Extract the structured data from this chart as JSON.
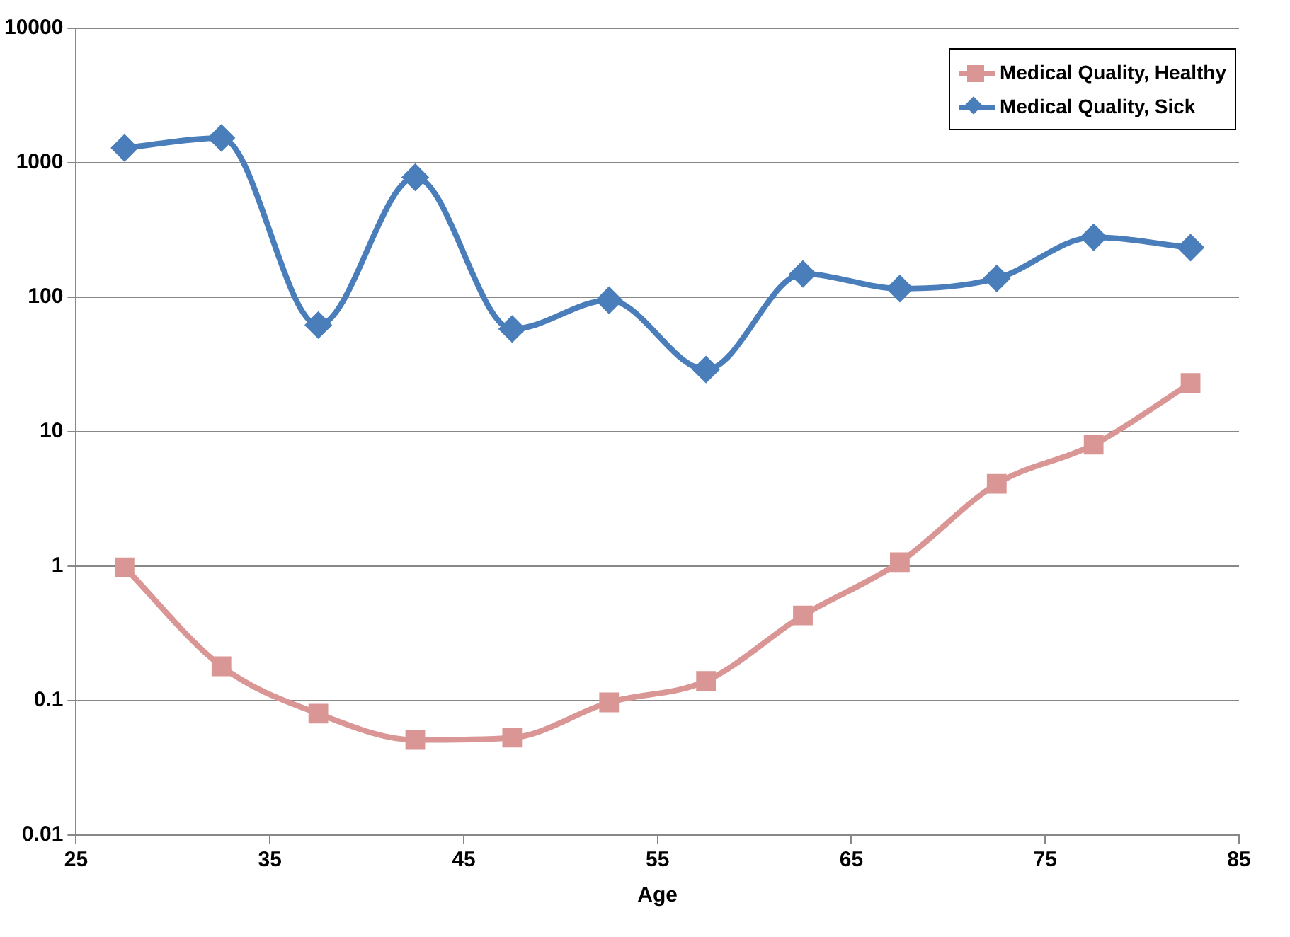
{
  "chart_data": {
    "type": "line",
    "xlabel": "Age",
    "x": [
      27.5,
      32.5,
      37.5,
      42.5,
      47.5,
      52.5,
      57.5,
      62.5,
      67.5,
      72.5,
      77.5,
      82.5
    ],
    "series": [
      {
        "name": "Medical Quality, Healthy",
        "color": "#d99694",
        "marker": "square",
        "values": [
          0.98,
          0.18,
          0.08,
          0.051,
          0.053,
          0.097,
          0.14,
          0.43,
          1.07,
          4.1,
          8,
          23
        ]
      },
      {
        "name": "Medical Quality, Sick",
        "color": "#4a7ebb",
        "marker": "diamond",
        "values": [
          1290,
          1530,
          62,
          780,
          58,
          95,
          29,
          149,
          116,
          138,
          279,
          234
        ]
      }
    ],
    "xlim": [
      25,
      85
    ],
    "xticks": [
      25,
      35,
      45,
      55,
      65,
      75,
      85
    ],
    "ylim": [
      0.01,
      10000
    ],
    "yticks": [
      0.01,
      0.1,
      1,
      10,
      100,
      1000,
      10000
    ],
    "log": true,
    "grid": "y",
    "legend": "top right",
    "line_style": "solid"
  }
}
